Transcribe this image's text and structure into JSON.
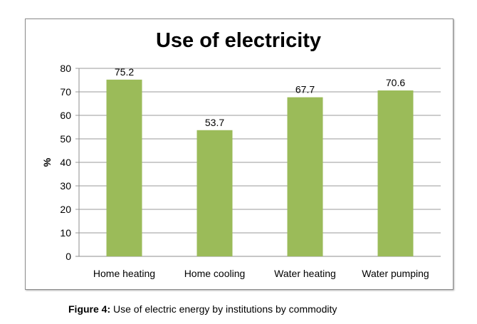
{
  "chart_data": {
    "type": "bar",
    "title": "Use of electricity",
    "categories": [
      "Home heating",
      "Home cooling",
      "Water heating",
      "Water pumping"
    ],
    "values": [
      75.2,
      53.7,
      67.7,
      70.6
    ],
    "data_labels": [
      "75.2",
      "53.7",
      "67.7",
      "70.6"
    ],
    "xlabel": "",
    "ylabel": "%",
    "ylim": [
      0,
      80
    ],
    "yticks": [
      0,
      10,
      20,
      30,
      40,
      50,
      60,
      70,
      80
    ],
    "grid": true,
    "bar_color": "#9bbb59"
  },
  "caption": {
    "label": "Figure 4:",
    "text": " Use of electric energy by institutions by commodity"
  }
}
